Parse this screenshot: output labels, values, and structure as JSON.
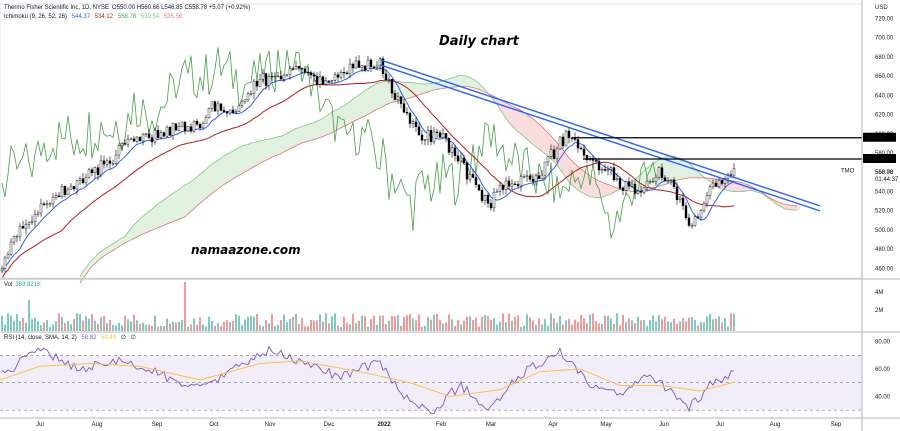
{
  "header": {
    "title": "Thermo Fisher Scientific Inc, 1D, NYSE",
    "ohlc": "O550.00  H560.66  L546.85  C558.78  +5.07 (+0.92%)",
    "ichimoku_label": "Ichimoku (9, 26, 52, 26)",
    "ichimoku_values": [
      "544.37",
      "534.12",
      "558.78",
      "539.54",
      "535.56"
    ],
    "vol_label": "Vol",
    "vol_value": "359.821K",
    "rsi_label": "RSI (14, close, SMA, 14, 2)",
    "rsi_values": [
      "58.82",
      "50.49",
      "∅",
      "∅"
    ]
  },
  "annotations": {
    "chart_title": "Daily chart",
    "watermark": "namaazone.com"
  },
  "axis": {
    "currency": "USD",
    "ticker": "TMO",
    "last_price": "558.78",
    "countdown": "01:44:37",
    "level_high": "595.90",
    "level_low": "573.78"
  },
  "colors": {
    "up": "#26a69a",
    "down": "#ef5350",
    "candle": "#000000",
    "tenkan": "#2962ff",
    "kijun": "#b71c1c",
    "chikou": "#43a047",
    "cloud_bull": "#a5d6a7",
    "cloud_bear": "#ef9a9a",
    "trend": "#2962ff",
    "rsi": "#7e57c2",
    "rsi_ma": "#fbc02d"
  },
  "chart_data": [
    {
      "type": "candlestick",
      "x_months": [
        "Jul",
        "Aug",
        "Sep",
        "Oct",
        "Nov",
        "Dec",
        "2022",
        "Feb",
        "Mar",
        "Apr",
        "May",
        "Jun",
        "Jul",
        "Aug",
        "Sep"
      ],
      "y_ticks": [
        460,
        480,
        500,
        520,
        540,
        560,
        580,
        600,
        620,
        640,
        660,
        680,
        700,
        720
      ],
      "ylim": [
        450,
        735
      ],
      "close_path": [
        [
          0,
          462
        ],
        [
          20,
          500
        ],
        [
          40,
          520
        ],
        [
          60,
          540
        ],
        [
          80,
          550
        ],
        [
          100,
          565
        ],
        [
          130,
          590
        ],
        [
          160,
          600
        ],
        [
          180,
          610
        ],
        [
          200,
          605
        ],
        [
          210,
          630
        ],
        [
          230,
          620
        ],
        [
          260,
          655
        ],
        [
          290,
          665
        ],
        [
          310,
          660
        ],
        [
          330,
          650
        ],
        [
          350,
          670
        ],
        [
          380,
          672
        ],
        [
          390,
          650
        ],
        [
          400,
          630
        ],
        [
          420,
          595
        ],
        [
          440,
          600
        ],
        [
          460,
          570
        ],
        [
          480,
          540
        ],
        [
          490,
          525
        ],
        [
          500,
          545
        ],
        [
          520,
          550
        ],
        [
          540,
          560
        ],
        [
          560,
          590
        ],
        [
          570,
          600
        ],
        [
          580,
          588
        ],
        [
          590,
          570
        ],
        [
          610,
          560
        ],
        [
          630,
          540
        ],
        [
          650,
          548
        ],
        [
          660,
          560
        ],
        [
          670,
          548
        ],
        [
          690,
          505
        ],
        [
          700,
          515
        ],
        [
          710,
          540
        ],
        [
          720,
          548
        ],
        [
          735,
          558.78
        ]
      ],
      "levels": [
        595.9,
        573.78
      ],
      "trendline": {
        "from": [
          380,
          677
        ],
        "to": [
          820,
          525
        ]
      }
    },
    {
      "type": "bar",
      "name": "Vol",
      "y_ticks": [
        "4M",
        "2M"
      ],
      "notable": [
        {
          "x": 185,
          "value": 4.9
        },
        {
          "x": 28,
          "value": 3.1
        }
      ]
    },
    {
      "type": "line",
      "name": "RSI",
      "y_ticks": [
        80,
        60,
        40
      ],
      "ylim": [
        25,
        87
      ],
      "band": [
        30,
        70
      ],
      "series": [
        [
          0,
          55
        ],
        [
          40,
          74
        ],
        [
          80,
          60
        ],
        [
          120,
          66
        ],
        [
          160,
          56
        ],
        [
          200,
          45
        ],
        [
          240,
          62
        ],
        [
          270,
          74
        ],
        [
          300,
          65
        ],
        [
          340,
          54
        ],
        [
          380,
          66
        ],
        [
          400,
          42
        ],
        [
          430,
          28
        ],
        [
          460,
          48
        ],
        [
          490,
          30
        ],
        [
          520,
          56
        ],
        [
          560,
          72
        ],
        [
          590,
          48
        ],
        [
          620,
          40
        ],
        [
          650,
          56
        ],
        [
          690,
          32
        ],
        [
          710,
          48
        ],
        [
          735,
          58.82
        ]
      ],
      "ma": [
        [
          0,
          52
        ],
        [
          40,
          62
        ],
        [
          90,
          64
        ],
        [
          140,
          62
        ],
        [
          200,
          52
        ],
        [
          260,
          64
        ],
        [
          300,
          66
        ],
        [
          360,
          58
        ],
        [
          410,
          50
        ],
        [
          450,
          40
        ],
        [
          500,
          45
        ],
        [
          540,
          58
        ],
        [
          580,
          60
        ],
        [
          620,
          48
        ],
        [
          660,
          48
        ],
        [
          700,
          44
        ],
        [
          735,
          50.49
        ]
      ]
    }
  ]
}
